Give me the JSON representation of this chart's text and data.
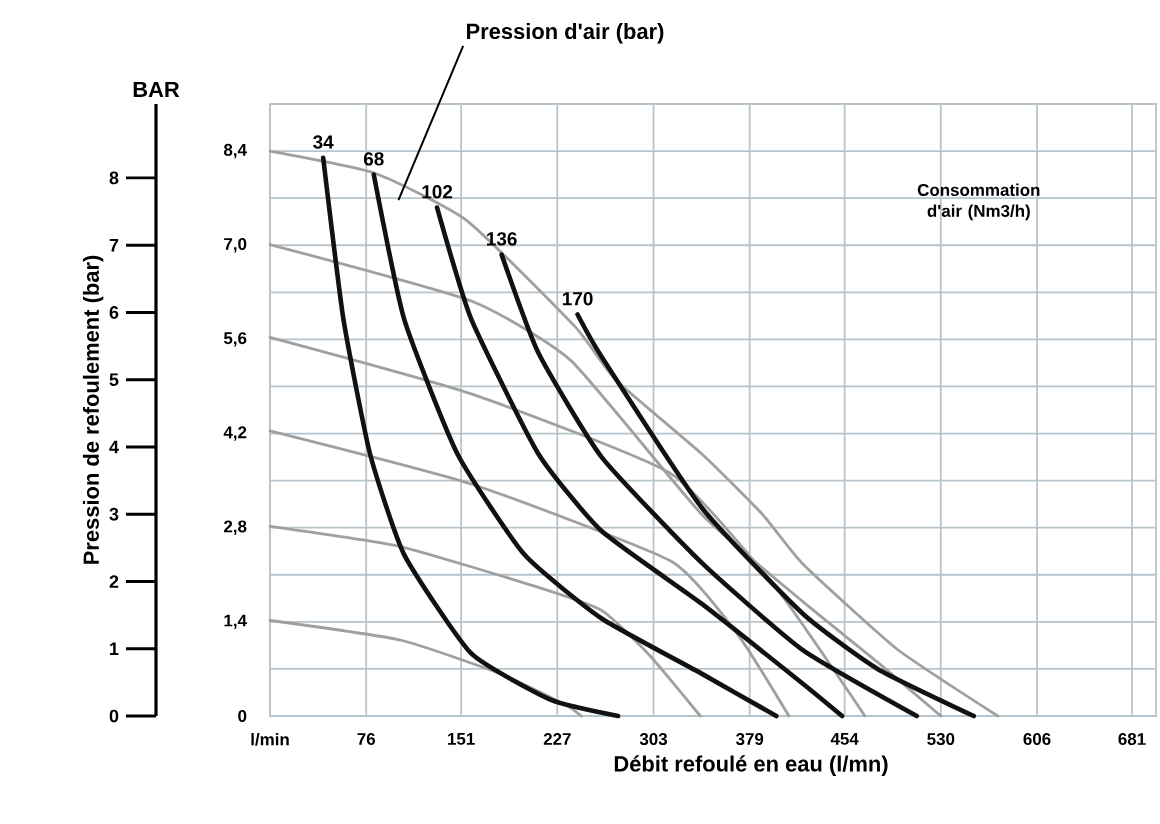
{
  "chart_data": {
    "type": "line",
    "xlabel": "Débit refoulé en eau (l/mn)",
    "ylabel": "Pression de refoulement (bar)",
    "xlim": [
      0,
      700
    ],
    "ylim": [
      0,
      9.1
    ],
    "y2lim": [
      0,
      9.1
    ],
    "xticks": [
      {
        "value": 0,
        "label": "l/min"
      },
      76,
      151,
      227,
      303,
      379,
      454,
      530,
      606,
      681
    ],
    "y2ticks": [
      0,
      {
        "value": 1.4,
        "label": "1,4"
      },
      {
        "value": 2.8,
        "label": "2,8"
      },
      {
        "value": 4.2,
        "label": "4,2"
      },
      {
        "value": 5.6,
        "label": "5,6"
      },
      {
        "value": 7.0,
        "label": "7,0"
      },
      {
        "value": 8.4,
        "label": "8,4"
      }
    ],
    "yticks": [
      0,
      1,
      2,
      3,
      4,
      5,
      6,
      7,
      8
    ],
    "grid": true,
    "series": [
      {
        "axis": "y2",
        "color": "#a0a0a0",
        "x": [
          0,
          103,
          183,
          235,
          246
        ],
        "values": [
          1.42,
          1.13,
          0.62,
          0.15,
          0
        ]
      },
      {
        "axis": "y2",
        "color": "#a0a0a0",
        "x": [
          0,
          103,
          209,
          262,
          300,
          340
        ],
        "values": [
          2.82,
          2.52,
          1.93,
          1.57,
          0.9,
          0
        ]
      },
      {
        "axis": "y2",
        "color": "#a0a0a0",
        "x": [
          0,
          159,
          317,
          370,
          410
        ],
        "values": [
          4.24,
          3.45,
          2.3,
          1.2,
          0
        ]
      },
      {
        "axis": "y2",
        "color": "#a0a0a0",
        "x": [
          0,
          159,
          317,
          400,
          470
        ],
        "values": [
          5.63,
          4.79,
          3.6,
          1.9,
          0
        ]
      },
      {
        "axis": "y2",
        "color": "#a0a0a0",
        "x": [
          0,
          159,
          238,
          341,
          421,
          480,
          530
        ],
        "values": [
          7.01,
          6.17,
          5.28,
          3.0,
          1.7,
          0.8,
          0
        ]
      },
      {
        "axis": "y2",
        "color": "#a0a0a0",
        "x": [
          0,
          83,
          156,
          241,
          273,
          341,
          389,
          421,
          495,
          575
        ],
        "values": [
          8.4,
          8.07,
          7.36,
          5.79,
          5.0,
          3.9,
          3.0,
          2.26,
          1.0,
          0
        ]
      },
      {
        "axis": "y2",
        "name": "34",
        "color": "#111111",
        "x": [
          42,
          58,
          79,
          106,
          159,
          222,
          275
        ],
        "values": [
          8.3,
          5.9,
          3.9,
          2.4,
          0.93,
          0.24,
          0
        ]
      },
      {
        "axis": "y2",
        "name": "68",
        "color": "#111111",
        "x": [
          82,
          106,
          148,
          201,
          262,
          341,
          400
        ],
        "values": [
          8.05,
          5.9,
          3.9,
          2.4,
          1.45,
          0.63,
          0
        ]
      },
      {
        "axis": "y2",
        "name": "102",
        "color": "#111111",
        "x": [
          132,
          159,
          212,
          262,
          341,
          421,
          452
        ],
        "values": [
          7.56,
          5.9,
          3.9,
          2.75,
          1.67,
          0.48,
          0
        ]
      },
      {
        "axis": "y2",
        "name": "136",
        "color": "#111111",
        "x": [
          183,
          212,
          262,
          341,
          421,
          511
        ],
        "values": [
          6.86,
          5.4,
          3.85,
          2.28,
          0.98,
          0
        ]
      },
      {
        "axis": "y2",
        "name": "170",
        "color": "#111111",
        "x": [
          243,
          262,
          341,
          421,
          480,
          556
        ],
        "values": [
          5.97,
          5.34,
          3.1,
          1.52,
          0.7,
          0
        ]
      }
    ],
    "annotations": [
      "Pression d'air (bar)",
      "Consommation d'air (Nm3/h)",
      "BAR"
    ]
  }
}
